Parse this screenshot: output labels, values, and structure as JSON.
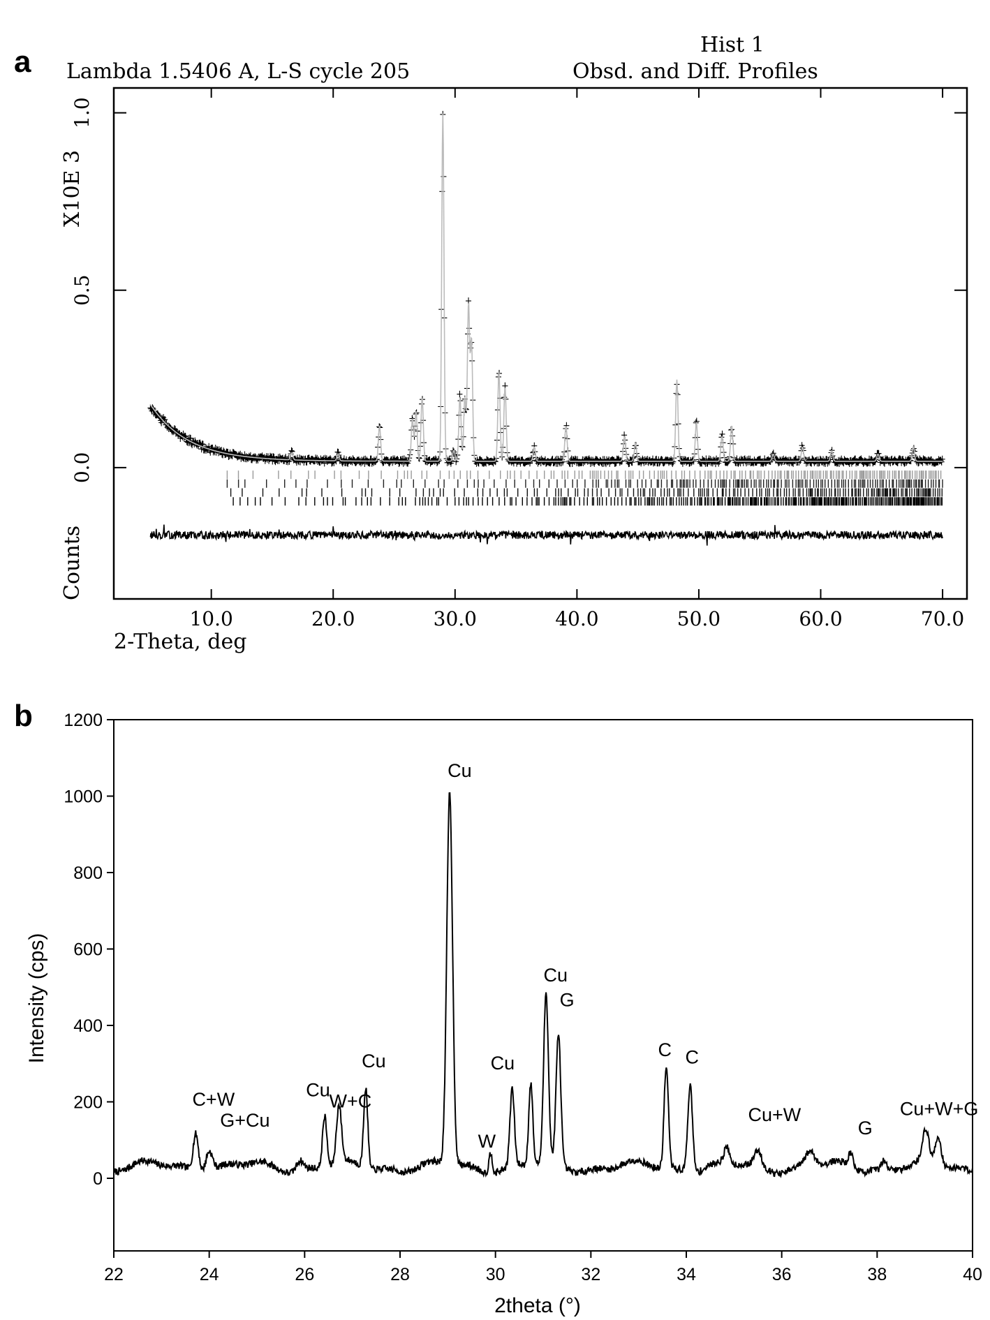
{
  "chart_data": [
    {
      "panel": "a",
      "type": "scatter",
      "header_left": "Lambda 1.5406 A, L-S cycle  205",
      "header_right_top": "Hist  1",
      "header_right": "Obsd. and Diff. Profiles",
      "ylabel_top": "X10E  3",
      "ylabel_bottom": "Counts",
      "xlabel": "2-Theta, deg",
      "xlim": [
        2.0,
        72.0
      ],
      "ylim": [
        -0.37,
        1.07
      ],
      "x_ticks": [
        10.0,
        20.0,
        30.0,
        40.0,
        50.0,
        60.0,
        70.0
      ],
      "x_tick_labels": [
        "10.0",
        "20.0",
        "30.0",
        "40.0",
        "50.0",
        "60.0",
        "70.0"
      ],
      "y_ticks": [
        0.0,
        0.5,
        1.0
      ],
      "y_tick_labels": [
        "0.0",
        "0.5",
        "1.0"
      ],
      "x_range": [
        5.0,
        70.0
      ],
      "background": {
        "a": 0.018,
        "b": 0.16,
        "c": 0.32
      },
      "peaks": [
        {
          "x": 16.6,
          "y": 0.02
        },
        {
          "x": 20.4,
          "y": 0.02
        },
        {
          "x": 23.8,
          "y": 0.1
        },
        {
          "x": 26.5,
          "y": 0.12
        },
        {
          "x": 26.8,
          "y": 0.14
        },
        {
          "x": 27.3,
          "y": 0.18
        },
        {
          "x": 29.0,
          "y": 0.98
        },
        {
          "x": 29.9,
          "y": 0.03
        },
        {
          "x": 30.4,
          "y": 0.18
        },
        {
          "x": 30.8,
          "y": 0.18
        },
        {
          "x": 31.1,
          "y": 0.44
        },
        {
          "x": 31.35,
          "y": 0.34
        },
        {
          "x": 33.6,
          "y": 0.25
        },
        {
          "x": 34.1,
          "y": 0.21
        },
        {
          "x": 36.5,
          "y": 0.04
        },
        {
          "x": 39.1,
          "y": 0.1
        },
        {
          "x": 43.9,
          "y": 0.07
        },
        {
          "x": 44.8,
          "y": 0.05
        },
        {
          "x": 48.2,
          "y": 0.23
        },
        {
          "x": 49.8,
          "y": 0.11
        },
        {
          "x": 51.9,
          "y": 0.07
        },
        {
          "x": 52.7,
          "y": 0.1
        },
        {
          "x": 56.1,
          "y": 0.02
        },
        {
          "x": 58.5,
          "y": 0.04
        },
        {
          "x": 60.9,
          "y": 0.03
        },
        {
          "x": 64.7,
          "y": 0.02
        },
        {
          "x": 67.6,
          "y": 0.04
        }
      ],
      "reflection_marker_rows": [
        {
          "y": -0.02,
          "start": 11.3,
          "color": "#9a9a9a"
        },
        {
          "y": -0.045,
          "start": 11.3,
          "color": "#222222"
        },
        {
          "y": -0.07,
          "start": 11.6,
          "color": "#111111"
        },
        {
          "y": -0.095,
          "start": 11.8,
          "color": "#000000"
        }
      ],
      "difference_curve_offset": -0.19
    },
    {
      "panel": "b",
      "type": "line",
      "xlabel": "2theta (°)",
      "ylabel": "Intensity (cps)",
      "xlim": [
        22,
        40
      ],
      "ylim": [
        -190,
        1200
      ],
      "x_ticks": [
        22,
        24,
        26,
        28,
        30,
        32,
        34,
        36,
        38,
        40
      ],
      "y_ticks": [
        0,
        200,
        400,
        600,
        800,
        1000,
        1200
      ],
      "baseline": 30,
      "peaks": [
        {
          "x": 23.72,
          "y": 100,
          "w": 0.08
        },
        {
          "x": 24.0,
          "y": 55,
          "w": 0.1
        },
        {
          "x": 25.9,
          "y": 25,
          "w": 0.1
        },
        {
          "x": 26.42,
          "y": 135,
          "w": 0.065
        },
        {
          "x": 26.72,
          "y": 150,
          "w": 0.075
        },
        {
          "x": 27.28,
          "y": 210,
          "w": 0.06
        },
        {
          "x": 29.04,
          "y": 975,
          "w": 0.085
        },
        {
          "x": 29.9,
          "y": 55,
          "w": 0.05
        },
        {
          "x": 30.35,
          "y": 200,
          "w": 0.065
        },
        {
          "x": 30.74,
          "y": 215,
          "w": 0.06
        },
        {
          "x": 31.06,
          "y": 445,
          "w": 0.07
        },
        {
          "x": 31.32,
          "y": 340,
          "w": 0.07
        },
        {
          "x": 33.58,
          "y": 265,
          "w": 0.065
        },
        {
          "x": 34.08,
          "y": 228,
          "w": 0.07
        },
        {
          "x": 34.85,
          "y": 40,
          "w": 0.08
        },
        {
          "x": 35.5,
          "y": 40,
          "w": 0.1
        },
        {
          "x": 36.6,
          "y": 38,
          "w": 0.14
        },
        {
          "x": 37.45,
          "y": 35,
          "w": 0.07
        },
        {
          "x": 38.15,
          "y": 25,
          "w": 0.07
        },
        {
          "x": 39.02,
          "y": 85,
          "w": 0.09
        },
        {
          "x": 39.28,
          "y": 75,
          "w": 0.09
        }
      ],
      "annotations": [
        {
          "text": "Cu",
          "x": 29.25,
          "y": 1050
        },
        {
          "text": "Cu",
          "x": 31.26,
          "y": 515
        },
        {
          "text": "G",
          "x": 31.5,
          "y": 450
        },
        {
          "text": "Cu",
          "x": 27.45,
          "y": 290
        },
        {
          "text": "Cu",
          "x": 30.15,
          "y": 285
        },
        {
          "text": "C",
          "x": 33.55,
          "y": 320
        },
        {
          "text": "C",
          "x": 34.12,
          "y": 300
        },
        {
          "text": "C+W",
          "x": 24.09,
          "y": 190
        },
        {
          "text": "G+Cu",
          "x": 24.75,
          "y": 135
        },
        {
          "text": "Cu",
          "x": 26.28,
          "y": 215
        },
        {
          "text": "W+C",
          "x": 26.96,
          "y": 185
        },
        {
          "text": "W",
          "x": 29.82,
          "y": 80
        },
        {
          "text": "Cu+W",
          "x": 35.85,
          "y": 150
        },
        {
          "text": "G",
          "x": 37.75,
          "y": 115
        },
        {
          "text": "Cu+W+G",
          "x": 39.3,
          "y": 165
        }
      ]
    }
  ],
  "labels": {
    "a": "a",
    "b": "b"
  }
}
